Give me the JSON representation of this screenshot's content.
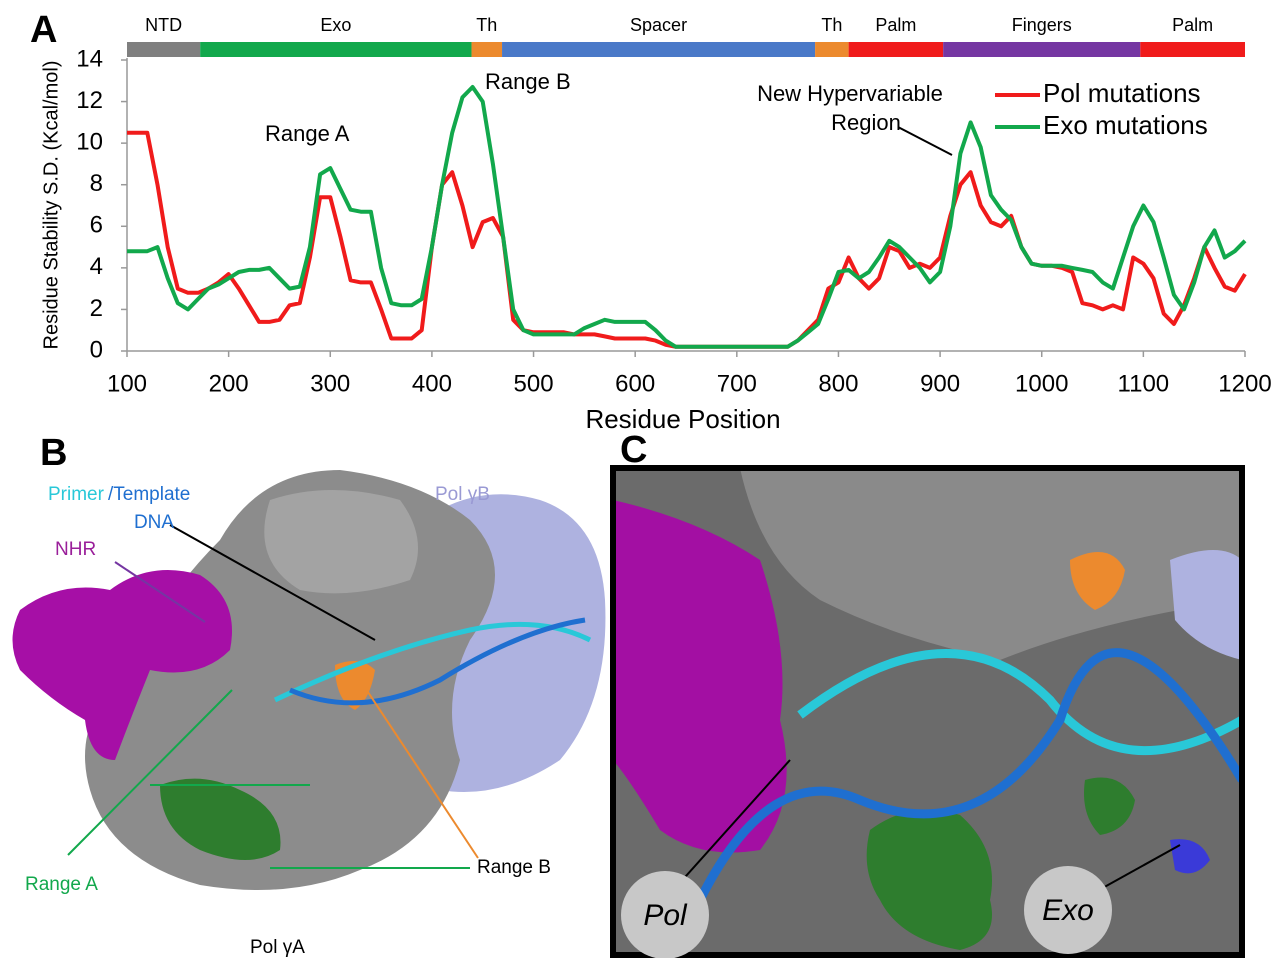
{
  "chart_data": {
    "type": "line",
    "panel_label": "A",
    "x_label": "Residue Position",
    "y_label": "Residue Stability S.D. (Kcal/mol)",
    "xlim": [
      100,
      1200
    ],
    "ylim": [
      0,
      14
    ],
    "xticks": [
      100,
      200,
      300,
      400,
      500,
      600,
      700,
      800,
      900,
      1000,
      1100,
      1200
    ],
    "yticks": [
      0,
      2,
      4,
      6,
      8,
      10,
      12,
      14
    ],
    "legend": "top-right",
    "domains": [
      {
        "label": "NTD",
        "start": 100,
        "end": 172,
        "color": "#7f7f7f"
      },
      {
        "label": "Exo",
        "start": 172,
        "end": 439,
        "color": "#12a84c"
      },
      {
        "label": "Th",
        "start": 439,
        "end": 469,
        "color": "#ec8a2e"
      },
      {
        "label": "Spacer",
        "start": 469,
        "end": 777,
        "color": "#4a79c8"
      },
      {
        "label": "Th",
        "start": 777,
        "end": 810,
        "color": "#ec8a2e"
      },
      {
        "label": "Palm",
        "start": 810,
        "end": 903,
        "color": "#f01b1b"
      },
      {
        "label": "Fingers",
        "start": 903,
        "end": 1097,
        "color": "#7536a2"
      },
      {
        "label": "Palm",
        "start": 1097,
        "end": 1200,
        "color": "#f01b1b"
      }
    ],
    "annotations": [
      {
        "lines": [
          "Range A"
        ]
      },
      {
        "lines": [
          "Range B"
        ]
      },
      {
        "lines": [
          "New Hypervariable",
          "Region"
        ]
      }
    ],
    "x": [
      100,
      110,
      120,
      130,
      140,
      150,
      160,
      170,
      180,
      190,
      200,
      210,
      220,
      230,
      240,
      250,
      260,
      270,
      280,
      290,
      300,
      310,
      320,
      330,
      340,
      350,
      360,
      370,
      380,
      390,
      400,
      410,
      420,
      430,
      440,
      450,
      460,
      470,
      480,
      490,
      500,
      510,
      520,
      530,
      540,
      550,
      560,
      570,
      580,
      590,
      600,
      610,
      620,
      630,
      640,
      650,
      660,
      670,
      680,
      690,
      700,
      710,
      720,
      730,
      740,
      750,
      760,
      770,
      780,
      790,
      800,
      810,
      820,
      830,
      840,
      850,
      860,
      870,
      880,
      890,
      900,
      910,
      920,
      930,
      940,
      950,
      960,
      970,
      980,
      990,
      1000,
      1010,
      1020,
      1030,
      1040,
      1050,
      1060,
      1070,
      1080,
      1090,
      1100,
      1110,
      1120,
      1130,
      1140,
      1150,
      1160,
      1170,
      1180,
      1190,
      1200
    ],
    "series": [
      {
        "name": "Pol mutations",
        "color": "#f01b1b",
        "values": [
          10.5,
          10.5,
          10.5,
          8,
          5,
          3,
          2.8,
          2.8,
          3,
          3.3,
          3.7,
          3,
          2.2,
          1.4,
          1.4,
          1.5,
          2.2,
          2.3,
          4.5,
          7.4,
          7.4,
          5.5,
          3.4,
          3.3,
          3.3,
          2,
          0.6,
          0.6,
          0.6,
          1,
          5,
          8,
          8.6,
          7,
          5,
          6.2,
          6.4,
          5.5,
          1.5,
          1,
          0.9,
          0.9,
          0.9,
          0.9,
          0.8,
          0.8,
          0.8,
          0.7,
          0.6,
          0.6,
          0.6,
          0.6,
          0.5,
          0.3,
          0.2,
          0.2,
          0.2,
          0.2,
          0.2,
          0.2,
          0.2,
          0.2,
          0.2,
          0.2,
          0.2,
          0.2,
          0.5,
          1,
          1.5,
          3,
          3.3,
          4.5,
          3.5,
          3,
          3.5,
          5,
          4.8,
          4,
          4.2,
          4,
          4.5,
          6.5,
          8,
          8.6,
          7,
          6.2,
          6,
          6.5,
          5,
          4.2,
          4.1,
          4.1,
          4,
          3.8,
          2.3,
          2.2,
          2,
          2.2,
          2,
          4.5,
          4.2,
          3.5,
          1.8,
          1.3,
          2.2,
          3.5,
          5,
          4,
          3.1,
          2.9,
          3.7
        ]
      },
      {
        "name": "Exo mutations",
        "color": "#12a84c",
        "values": [
          4.8,
          4.8,
          4.8,
          5,
          3.5,
          2.3,
          2,
          2.5,
          3,
          3.2,
          3.5,
          3.8,
          3.9,
          3.9,
          4,
          3.5,
          3,
          3.1,
          5,
          8.5,
          8.8,
          7.8,
          6.8,
          6.7,
          6.7,
          4,
          2.3,
          2.2,
          2.2,
          2.5,
          5,
          8,
          10.5,
          12.2,
          12.7,
          12,
          9,
          5.5,
          2,
          1,
          0.8,
          0.8,
          0.8,
          0.8,
          0.8,
          1.1,
          1.3,
          1.5,
          1.4,
          1.4,
          1.4,
          1.4,
          1,
          0.5,
          0.2,
          0.2,
          0.2,
          0.2,
          0.2,
          0.2,
          0.2,
          0.2,
          0.2,
          0.2,
          0.2,
          0.2,
          0.5,
          0.9,
          1.3,
          2.5,
          3.8,
          3.9,
          3.5,
          3.8,
          4.5,
          5.3,
          5,
          4.5,
          4,
          3.3,
          3.8,
          6,
          9.5,
          11,
          9.8,
          7.5,
          6.8,
          6.3,
          5,
          4.2,
          4.1,
          4.1,
          4.1,
          4,
          3.9,
          3.8,
          3.3,
          3,
          4.5,
          6,
          7,
          6.2,
          4.5,
          2.7,
          2,
          3.3,
          5,
          5.8,
          4.5,
          4.8,
          5.3
        ]
      }
    ]
  },
  "panel_b": {
    "label": "B",
    "primer": "Primer",
    "template": "/Template",
    "dna": "DNA",
    "pol_b": "Pol γB",
    "nhr": "NHR",
    "range_a": "Range A",
    "range_b": "Range B",
    "pol_a": "Pol γA"
  },
  "panel_c": {
    "label": "C",
    "pol": "Pol",
    "exo": "Exo"
  }
}
